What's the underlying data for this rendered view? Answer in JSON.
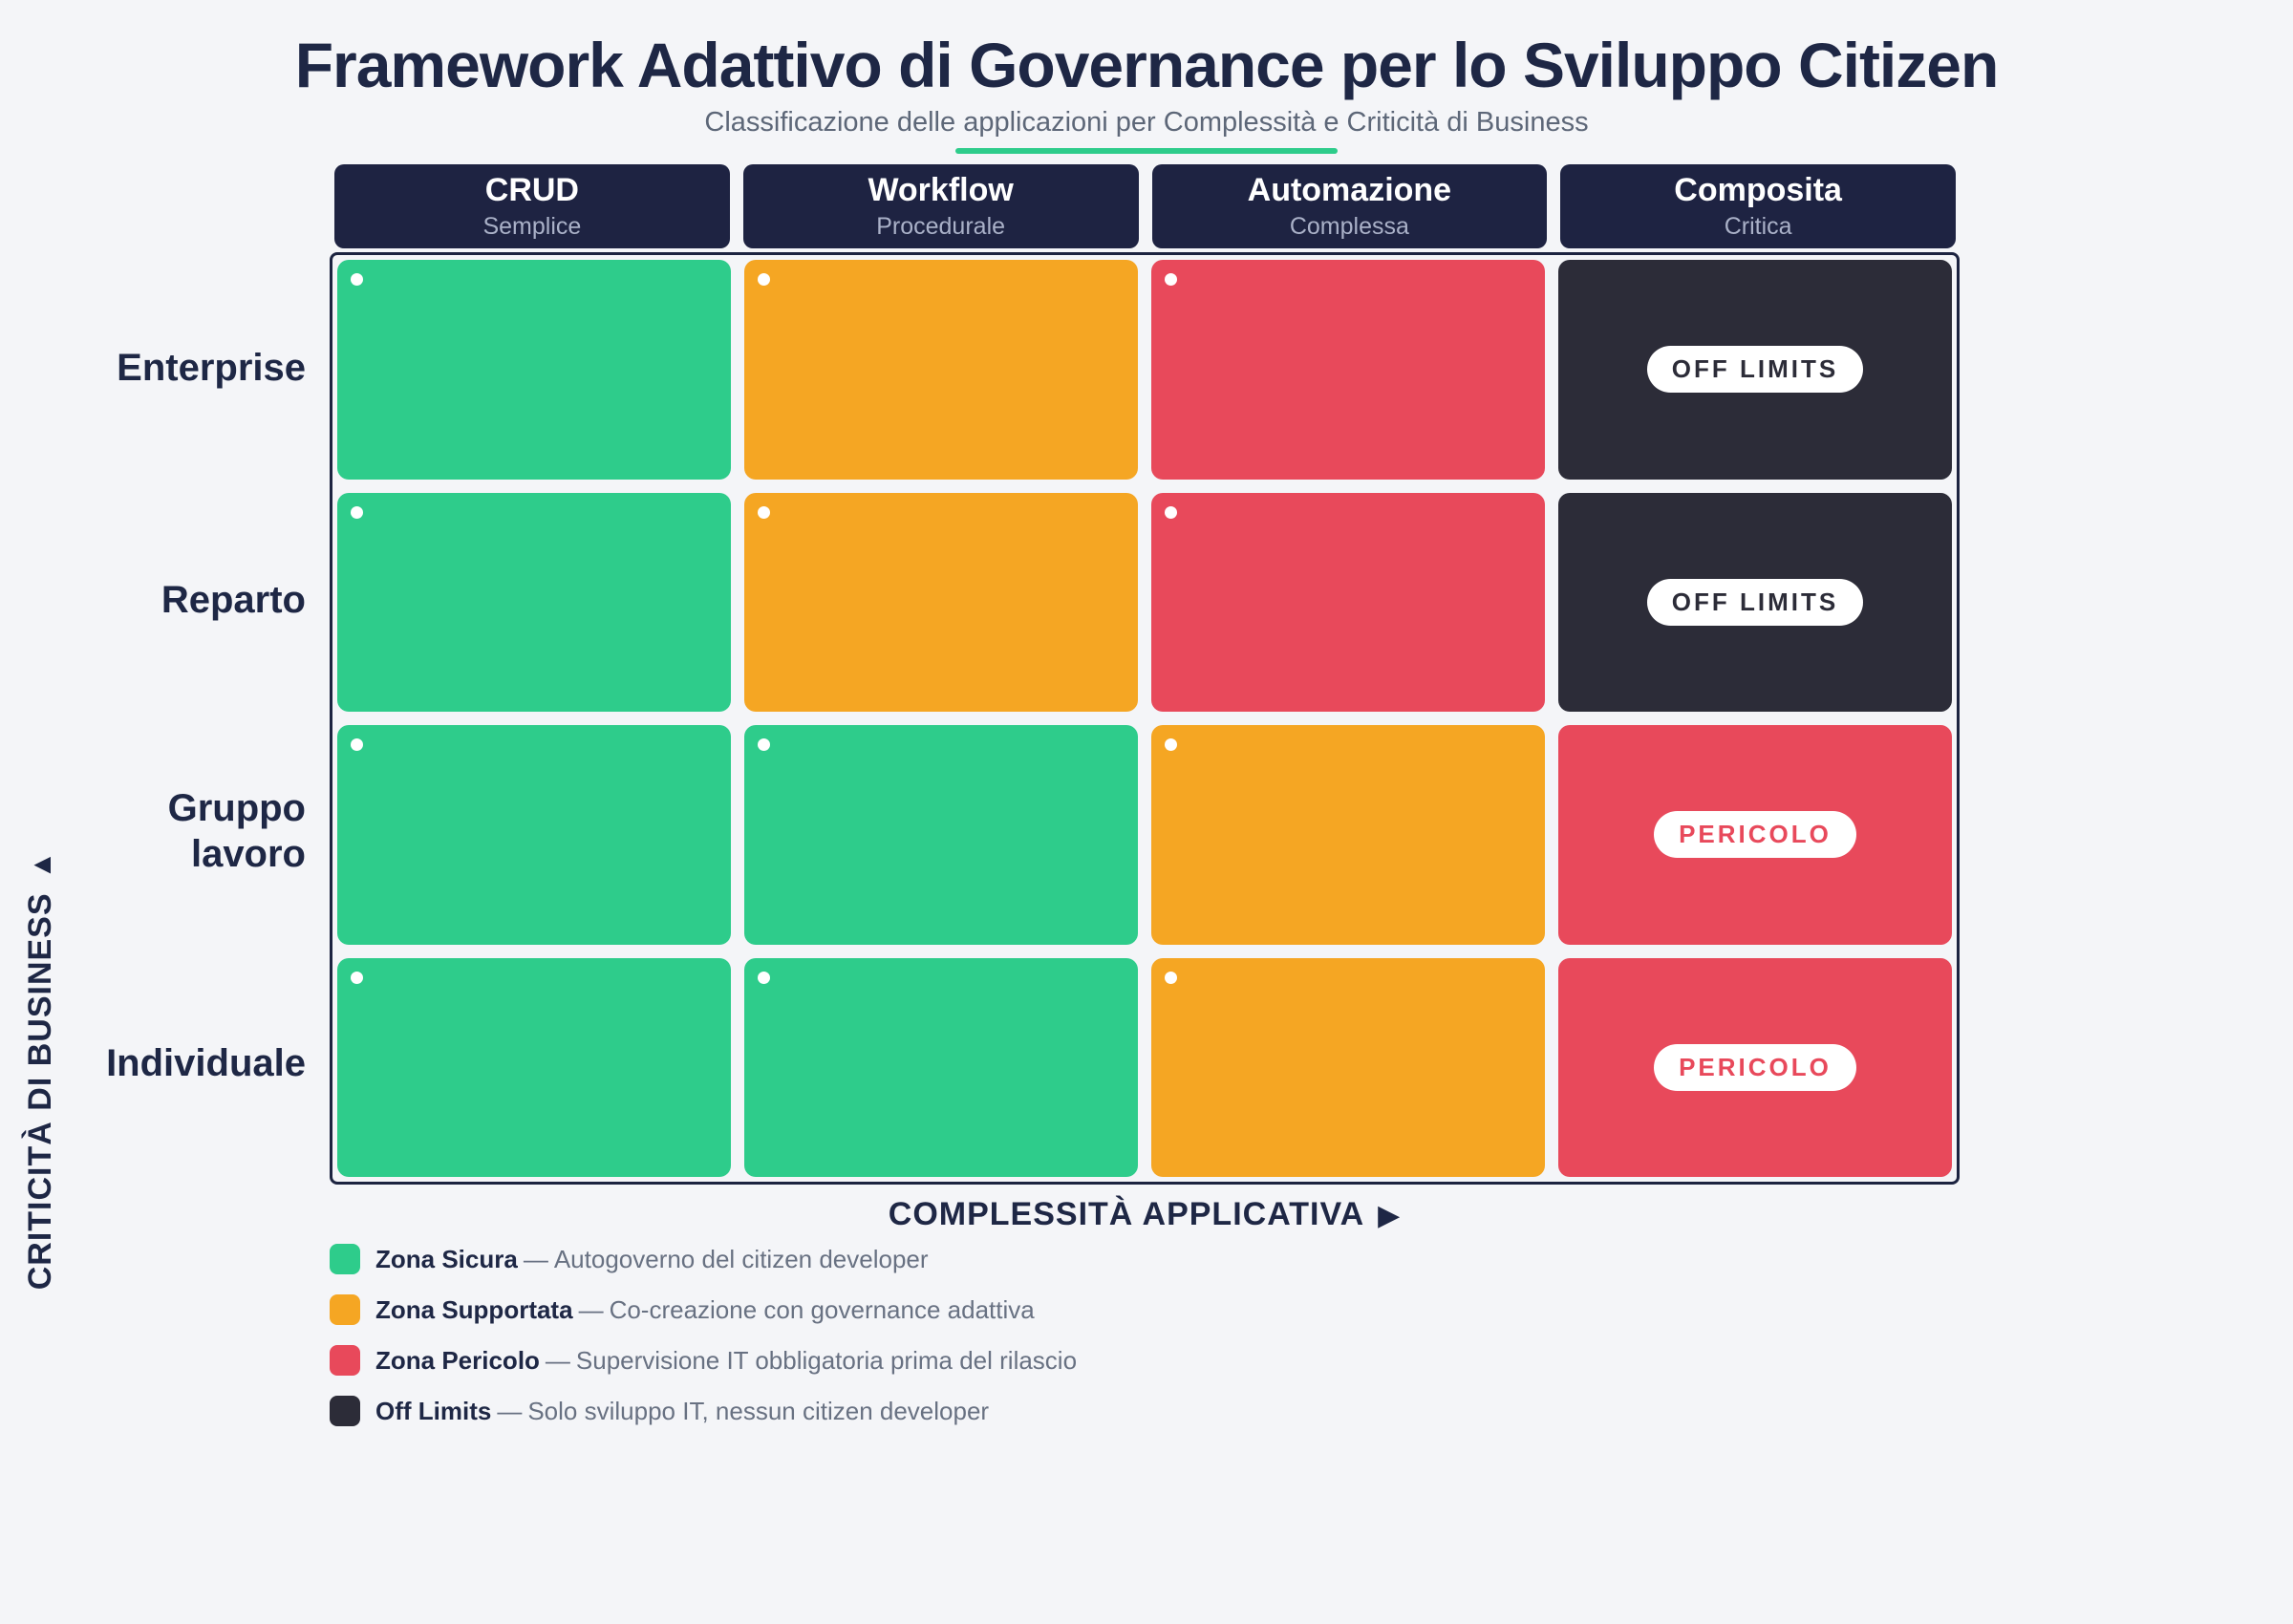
{
  "title": "Framework Adattivo di Governance per lo Sviluppo Citizen",
  "subtitle": "Classificazione delle applicazioni per Complessità e Criticità di Business",
  "columns": [
    {
      "label": "CRUD",
      "sublabel": "Semplice"
    },
    {
      "label": "Workflow",
      "sublabel": "Procedurale"
    },
    {
      "label": "Automazione",
      "sublabel": "Complessa"
    },
    {
      "label": "Composita",
      "sublabel": "Critica"
    }
  ],
  "grid": {
    "rows": [
      {
        "label": "Enterprise",
        "cells": [
          {
            "zone": "safe"
          },
          {
            "zone": "supported"
          },
          {
            "zone": "danger"
          },
          {
            "zone": "offlimits",
            "badge": "OFF LIMITS"
          }
        ]
      },
      {
        "label": "Reparto",
        "cells": [
          {
            "zone": "safe"
          },
          {
            "zone": "supported"
          },
          {
            "zone": "danger"
          },
          {
            "zone": "offlimits",
            "badge": "OFF LIMITS"
          }
        ]
      },
      {
        "label": "Gruppo lavoro",
        "cells": [
          {
            "zone": "safe"
          },
          {
            "zone": "safe"
          },
          {
            "zone": "supported"
          },
          {
            "zone": "danger",
            "badge": "PERICOLO"
          }
        ]
      },
      {
        "label": "Individuale",
        "cells": [
          {
            "zone": "safe"
          },
          {
            "zone": "safe"
          },
          {
            "zone": "supported"
          },
          {
            "zone": "danger",
            "badge": "PERICOLO"
          }
        ]
      }
    ]
  },
  "axes": {
    "x_label": "COMPLESSITÀ APPLICATIVA",
    "x_arrow": "▶",
    "y_label": "CRITICITÀ DI BUSINESS",
    "y_arrow": "▲"
  },
  "legend": [
    {
      "zone": "safe",
      "name": "Zona Sicura",
      "separator": "—",
      "description": "Autogoverno del citizen developer"
    },
    {
      "zone": "supported",
      "name": "Zona Supportata",
      "separator": "—",
      "description": "Co-creazione con governance adattiva"
    },
    {
      "zone": "danger",
      "name": "Zona Pericolo",
      "separator": "—",
      "description": "Supervisione IT obbligatoria prima del rilascio"
    },
    {
      "zone": "offlimits",
      "name": "Off Limits",
      "separator": "—",
      "description": "Solo sviluppo IT, nessun citizen developer"
    }
  ],
  "colors": {
    "safe": "#2ecc8b",
    "supported": "#f5a623",
    "danger": "#e8495b",
    "offlimits": "#2c2c38",
    "header_bg": "#1e2342",
    "navy": "#1e2745",
    "accent_underline": "#2ecc8b",
    "background": "#f4f5f8"
  }
}
